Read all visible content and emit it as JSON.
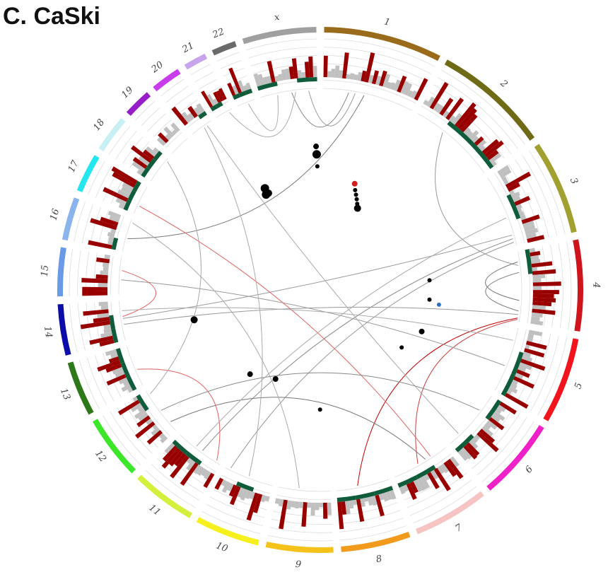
{
  "panel_title": "C. CaSki",
  "chart_data": {
    "type": "circos",
    "chromosomes": [
      {
        "name": "1",
        "size": 249,
        "color": "#9a6b1b"
      },
      {
        "name": "2",
        "size": 243,
        "color": "#6e6a15"
      },
      {
        "name": "3",
        "size": 198,
        "color": "#a3a032"
      },
      {
        "name": "4",
        "size": 191,
        "color": "#d0141c"
      },
      {
        "name": "5",
        "size": 181,
        "color": "#f2141c"
      },
      {
        "name": "6",
        "size": 171,
        "color": "#f020c8"
      },
      {
        "name": "7",
        "size": 159,
        "color": "#f7c4c4"
      },
      {
        "name": "8",
        "size": 146,
        "color": "#f29a1c"
      },
      {
        "name": "9",
        "size": 141,
        "color": "#f5c21c"
      },
      {
        "name": "10",
        "size": 136,
        "color": "#f6f11e"
      },
      {
        "name": "11",
        "size": 135,
        "color": "#d5f03c"
      },
      {
        "name": "12",
        "size": 134,
        "color": "#3ce628"
      },
      {
        "name": "13",
        "size": 115,
        "color": "#2d7818"
      },
      {
        "name": "14",
        "size": 107,
        "color": "#0c0ca8"
      },
      {
        "name": "15",
        "size": 102,
        "color": "#6a9ae6"
      },
      {
        "name": "16",
        "size": 90,
        "color": "#8ab4ec"
      },
      {
        "name": "17",
        "size": 81,
        "color": "#24e6ee"
      },
      {
        "name": "18",
        "size": 78,
        "color": "#c8f0f4"
      },
      {
        "name": "19",
        "size": 59,
        "color": "#961ec8"
      },
      {
        "name": "20",
        "size": 63,
        "color": "#c83cec"
      },
      {
        "name": "21",
        "size": 48,
        "color": "#c8a4ec"
      },
      {
        "name": "22",
        "size": 51,
        "color": "#6a6a6a"
      },
      {
        "name": "x",
        "size": 155,
        "color": "#a0a0a0"
      }
    ],
    "histogram_colors": {
      "gain": "#980000",
      "neutral": "#c0c0c0",
      "loss": "#0e5c3a"
    },
    "links": [
      {
        "a": [
          "1",
          0.28
        ],
        "b": [
          "x",
          0.55
        ],
        "color": "#888888"
      },
      {
        "a": [
          "1",
          0.45
        ],
        "b": [
          "16",
          0.4
        ],
        "color": "#777777"
      },
      {
        "a": [
          "1",
          0.35
        ],
        "b": [
          "x",
          0.85
        ],
        "color": "#999999"
      },
      {
        "a": [
          "2",
          0.35
        ],
        "b": [
          "4",
          0.2
        ],
        "color": "#999999"
      },
      {
        "a": [
          "x",
          0.3
        ],
        "b": [
          "22",
          0.6
        ],
        "color": "#aaaaaa"
      },
      {
        "a": [
          "x",
          0.62
        ],
        "b": [
          "21",
          0.8
        ],
        "color": "#aaaaaa"
      },
      {
        "a": [
          "3",
          0.85
        ],
        "b": [
          "14",
          0.55
        ],
        "color": "#999999"
      },
      {
        "a": [
          "3",
          0.9
        ],
        "b": [
          "11",
          0.45
        ],
        "color": "#888888"
      },
      {
        "a": [
          "3",
          0.95
        ],
        "b": [
          "10",
          0.9
        ],
        "color": "#999999"
      },
      {
        "a": [
          "4",
          0.15
        ],
        "b": [
          "4",
          0.7
        ],
        "color": "#777777"
      },
      {
        "a": [
          "4",
          0.3
        ],
        "b": [
          "4",
          0.85
        ],
        "color": "#777777"
      },
      {
        "a": [
          "4",
          0.9
        ],
        "b": [
          "14",
          0.4
        ],
        "color": "#999999"
      },
      {
        "a": [
          "4",
          0.95
        ],
        "b": [
          "8",
          0.6
        ],
        "color": "#c00000"
      },
      {
        "a": [
          "4",
          0.97
        ],
        "b": [
          "7",
          0.55
        ],
        "color": "#d04040"
      },
      {
        "a": [
          "5",
          0.6
        ],
        "b": [
          "15",
          0.4
        ],
        "color": "#999999"
      },
      {
        "a": [
          "6",
          0.8
        ],
        "b": [
          "20",
          0.75
        ],
        "color": "#aaaaaa"
      },
      {
        "a": [
          "7",
          0.4
        ],
        "b": [
          "12",
          0.2
        ],
        "color": "#777777"
      },
      {
        "a": [
          "17",
          0.3
        ],
        "b": [
          "7",
          0.3
        ],
        "color": "#e06060"
      },
      {
        "a": [
          "15",
          0.65
        ],
        "b": [
          "14",
          0.6
        ],
        "color": "#e06060"
      },
      {
        "a": [
          "13",
          0.4
        ],
        "b": [
          "11",
          0.1
        ],
        "color": "#e06060"
      },
      {
        "a": [
          "16",
          0.9
        ],
        "b": [
          "9",
          0.6
        ],
        "color": "#aaaaaa"
      },
      {
        "a": [
          "20",
          0.6
        ],
        "b": [
          "10",
          0.5
        ],
        "color": "#aaaaaa"
      },
      {
        "a": [
          "18",
          0.9
        ],
        "b": [
          "12",
          0.9
        ],
        "color": "#aaaaaa"
      },
      {
        "a": [
          "14",
          0.75
        ],
        "b": [
          "5",
          0.2
        ],
        "color": "#aaaaaa"
      },
      {
        "a": [
          "12",
          0.5
        ],
        "b": [
          "6",
          0.3
        ],
        "color": "#888888"
      },
      {
        "a": [
          "11",
          0.6
        ],
        "b": [
          "3",
          0.6
        ],
        "color": "#aaaaaa"
      }
    ],
    "points": [
      {
        "chr": "1",
        "pos": 0.65,
        "r": 0.56,
        "size": 4,
        "color": "#d02020"
      },
      {
        "chr": "1",
        "pos": 0.7,
        "r": 0.53,
        "size": 3,
        "color": "#000000"
      },
      {
        "chr": "1",
        "pos": 0.75,
        "r": 0.51,
        "size": 3,
        "color": "#000000"
      },
      {
        "chr": "1",
        "pos": 0.8,
        "r": 0.49,
        "size": 3,
        "color": "#000000"
      },
      {
        "chr": "1",
        "pos": 0.85,
        "r": 0.47,
        "size": 3,
        "color": "#000000"
      },
      {
        "chr": "1",
        "pos": 0.9,
        "r": 0.45,
        "size": 5,
        "color": "#000000"
      },
      {
        "chr": "x",
        "pos": 0.95,
        "r": 0.72,
        "size": 4,
        "color": "#000000"
      },
      {
        "chr": "x",
        "pos": 0.96,
        "r": 0.68,
        "size": 6,
        "color": "#000000"
      },
      {
        "chr": "x",
        "pos": 0.97,
        "r": 0.62,
        "size": 3,
        "color": "#000000"
      },
      {
        "chr": "21",
        "pos": 0.5,
        "r": 0.58,
        "size": 6,
        "color": "#000000"
      },
      {
        "chr": "21",
        "pos": 0.6,
        "r": 0.55,
        "size": 5,
        "color": "#000000"
      },
      {
        "chr": "21",
        "pos": 0.3,
        "r": 0.55,
        "size": 6,
        "color": "#000000"
      },
      {
        "chr": "4",
        "pos": 0.3,
        "r": 0.55,
        "size": 3,
        "color": "#000000"
      },
      {
        "chr": "4",
        "pos": 0.8,
        "r": 0.55,
        "size": 3,
        "color": "#000000"
      },
      {
        "chr": "4",
        "pos": 0.9,
        "r": 0.6,
        "size": 3,
        "color": "#3070c0"
      },
      {
        "chr": "5",
        "pos": 0.6,
        "r": 0.55,
        "size": 4,
        "color": "#000000"
      },
      {
        "chr": "6",
        "pos": 0.2,
        "r": 0.5,
        "size": 3,
        "color": "#000000"
      },
      {
        "chr": "14",
        "pos": 0.1,
        "r": 0.65,
        "size": 5,
        "color": "#000000"
      },
      {
        "chr": "11",
        "pos": 0.7,
        "r": 0.55,
        "size": 4,
        "color": "#000000"
      },
      {
        "chr": "10",
        "pos": 0.9,
        "r": 0.5,
        "size": 4,
        "color": "#000000"
      },
      {
        "chr": "9",
        "pos": 0.2,
        "r": 0.6,
        "size": 3,
        "color": "#000000"
      }
    ]
  }
}
